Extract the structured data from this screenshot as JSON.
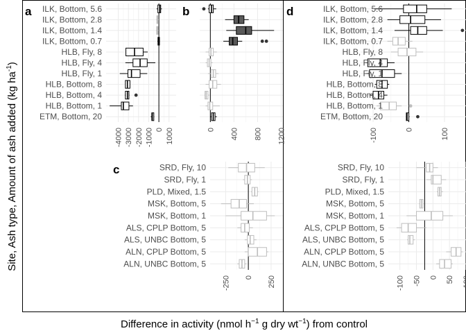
{
  "figure": {
    "ylabel_main": "Site, Ash type, Amount of ash added (kg ha",
    "ylabel_sup": "-1",
    "ylabel_end": ")",
    "xlabel_pre": "Difference in activity (nmol h",
    "xlabel_sup1": "−1",
    "xlabel_mid": " g dry wt",
    "xlabel_sup2": "−1",
    "xlabel_post": ") from control"
  },
  "colors": {
    "dark_fill": "#595959",
    "dark_stroke": "#000000",
    "light_stroke": "#bdbdbd",
    "grid": "#ebebeb",
    "text": "#4d4d4d"
  },
  "chart_data": [
    {
      "panel": "a",
      "type": "box",
      "categories": [
        "ILK, Bottom, 5.6",
        "ILK, Bottom, 2.8",
        "ILK, Bottom, 1.4",
        "ILK, Bottom, 0.7",
        "HLB, Fly, 8",
        "HLB, Fly, 4",
        "HLB, Fly, 1",
        "HLB, Bottom, 8",
        "HLB, Bottom, 4",
        "HLB, Bottom, 1",
        "ETM, Bottom, 20"
      ],
      "xticks": [
        -4000,
        -3000,
        -2000,
        -1000,
        0,
        1000
      ],
      "xlim": [
        -5200,
        1700
      ],
      "refline": 0,
      "boxes": [
        {
          "q1": -100,
          "med": 80,
          "q3": 180,
          "lo": -230,
          "hi": 300,
          "style": "dark"
        },
        {
          "q1": -200,
          "med": -130,
          "q3": -60,
          "lo": -260,
          "hi": 0,
          "style": "light"
        },
        {
          "q1": -220,
          "med": -140,
          "q3": -80,
          "lo": -280,
          "hi": -20,
          "style": "light"
        },
        {
          "q1": -90,
          "med": -20,
          "q3": 60,
          "lo": -140,
          "hi": 100,
          "style": "dark"
        },
        {
          "q1": -3250,
          "med": -2400,
          "q3": -1550,
          "lo": -3250,
          "hi": -1100,
          "style": "dark"
        },
        {
          "q1": -2550,
          "med": -1850,
          "q3": -1150,
          "lo": -3300,
          "hi": -350,
          "style": "dark"
        },
        {
          "q1": -3050,
          "med": -2700,
          "q3": -1850,
          "lo": -3850,
          "hi": -1150,
          "style": "dark"
        },
        {
          "q1": -3300,
          "med": -3100,
          "q3": -2850,
          "lo": -3300,
          "hi": -2850,
          "style": "dark"
        },
        {
          "q1": -3300,
          "med": -3100,
          "q3": -2950,
          "lo": -3350,
          "hi": -2900,
          "style": "dark",
          "outliers": [
            -2250
          ]
        },
        {
          "q1": -3700,
          "med": -3500,
          "q3": -2950,
          "lo": -4850,
          "hi": -2550,
          "style": "dark"
        },
        {
          "q1": -700,
          "med": -650,
          "q3": -500,
          "lo": -800,
          "hi": -450,
          "style": "dark"
        }
      ]
    },
    {
      "panel": "b",
      "type": "box",
      "xticks": [
        0,
        400,
        800,
        1200
      ],
      "xlim": [
        -180,
        1230
      ],
      "refline": 0,
      "boxes": [
        {
          "q1": -20,
          "med": 20,
          "q3": 50,
          "lo": -40,
          "hi": 100,
          "style": "dark",
          "outliers": [
            -110
          ]
        },
        {
          "q1": 400,
          "med": 480,
          "q3": 570,
          "lo": 250,
          "hi": 650,
          "style": "dark"
        },
        {
          "q1": 440,
          "med": 600,
          "q3": 700,
          "lo": 270,
          "hi": 1080,
          "style": "dark"
        },
        {
          "q1": 320,
          "med": 380,
          "q3": 460,
          "lo": 220,
          "hi": 540,
          "style": "dark",
          "outliers": [
            880,
            950
          ]
        },
        {
          "q1": -20,
          "med": 10,
          "q3": 50,
          "lo": -80,
          "hi": 110,
          "style": "light"
        },
        {
          "q1": -50,
          "med": -20,
          "q3": 10,
          "lo": -80,
          "hi": 40,
          "style": "light"
        },
        {
          "q1": 10,
          "med": 50,
          "q3": 90,
          "lo": -40,
          "hi": 140,
          "style": "light"
        },
        {
          "q1": -20,
          "med": 40,
          "q3": 110,
          "lo": -80,
          "hi": 180,
          "style": "light"
        },
        {
          "q1": -90,
          "med": -70,
          "q3": -40,
          "lo": -100,
          "hi": -20,
          "style": "light"
        },
        {
          "q1": -40,
          "med": -10,
          "q3": 40,
          "lo": -80,
          "hi": 160,
          "style": "light"
        },
        {
          "q1": 20,
          "med": 50,
          "q3": 80,
          "lo": 0,
          "hi": 110,
          "style": "dark"
        }
      ]
    },
    {
      "panel": "d",
      "type": "box",
      "categories": [
        "ILK, Bottom, 5.6",
        "ILK, Bottom, 2.8",
        "ILK, Bottom, 1.4",
        "ILK, Bottom, 0.7",
        "HLB, Fly, 8",
        "HLB, Fly, 4",
        "HLB, Fly, 1",
        "HLB, Bottom, 8",
        "HLB, Bottom, 4",
        "HLB, Bottom, 1",
        "ETM, Bottom, 20"
      ],
      "xticks": [
        -100,
        0,
        100
      ],
      "xlim": [
        -135,
        160
      ],
      "refline": 0,
      "boxes": [
        {
          "q1": -15,
          "med": 22,
          "q3": 50,
          "lo": -95,
          "hi": 120,
          "style": "dark"
        },
        {
          "q1": -25,
          "med": 5,
          "q3": 45,
          "lo": -60,
          "hi": 90,
          "style": "dark"
        },
        {
          "q1": 5,
          "med": 25,
          "q3": 50,
          "lo": -40,
          "hi": 95,
          "style": "dark",
          "outliers": [
            150
          ]
        },
        {
          "q1": -45,
          "med": -30,
          "q3": -10,
          "lo": -60,
          "hi": 10,
          "style": "light"
        },
        {
          "q1": -30,
          "med": -5,
          "q3": 20,
          "lo": -50,
          "hi": 40,
          "style": "light"
        },
        {
          "q1": -115,
          "med": -80,
          "q3": -60,
          "lo": -120,
          "hi": -40,
          "style": "dark"
        },
        {
          "q1": -110,
          "med": -75,
          "q3": -40,
          "lo": -120,
          "hi": -20,
          "style": "dark"
        },
        {
          "q1": -90,
          "med": -75,
          "q3": -60,
          "lo": -95,
          "hi": -55,
          "style": "dark"
        },
        {
          "q1": -100,
          "med": -85,
          "q3": -70,
          "lo": -110,
          "hi": -60,
          "style": "dark"
        },
        {
          "q1": -80,
          "med": -55,
          "q3": -35,
          "lo": -90,
          "hi": -20,
          "style": "light",
          "outliers": [
            5
          ]
        },
        {
          "q1": -7,
          "med": -5,
          "q3": 0,
          "lo": -8,
          "hi": 2,
          "style": "dark",
          "outliers": [
            25
          ]
        }
      ]
    },
    {
      "panel": "c",
      "type": "box",
      "categories": [
        "SRD, Fly, 10",
        "SRD, Fly, 1",
        "PLD, Mixed, 1.5",
        "MSK, Bottom, 5",
        "MSK, Bottom, 1",
        "ALS, CPLP Bottom, 5",
        "ALS, UNBC Bottom, 5",
        "ALN, CPLP Bottom, 5",
        "ALN, UNBC Bottom, 5"
      ],
      "xticks": [
        -250,
        0,
        250
      ],
      "xlim": [
        -420,
        380
      ],
      "refline": 0,
      "boxes": [
        {
          "q1": -110,
          "med": -20,
          "q3": 70,
          "lo": -220,
          "hi": 180,
          "style": "light"
        },
        {
          "q1": -40,
          "med": -10,
          "q3": 20,
          "lo": -60,
          "hi": 40,
          "style": "light"
        },
        {
          "q1": 40,
          "med": 70,
          "q3": 100,
          "lo": 30,
          "hi": 110,
          "style": "light"
        },
        {
          "q1": -190,
          "med": -100,
          "q3": -20,
          "lo": -300,
          "hi": 60,
          "style": "light"
        },
        {
          "q1": -80,
          "med": 50,
          "q3": 200,
          "lo": -250,
          "hi": 290,
          "style": "light"
        },
        {
          "q1": -80,
          "med": -40,
          "q3": 10,
          "lo": -120,
          "hi": 50,
          "style": "light"
        },
        {
          "q1": -10,
          "med": 20,
          "q3": 60,
          "lo": -40,
          "hi": 90,
          "style": "light"
        },
        {
          "q1": 0,
          "med": 100,
          "q3": 200,
          "lo": -40,
          "hi": 220,
          "style": "light"
        },
        {
          "q1": -100,
          "med": -70,
          "q3": -40,
          "lo": -120,
          "hi": -20,
          "style": "light"
        }
      ]
    },
    {
      "panel": "",
      "type": "box",
      "categories": [
        "SRD, Fly, 10",
        "SRD, Fly, 1",
        "PLD, Mixed, 1.5",
        "MSK, Bottom, 5",
        "MSK, Bottom, 1",
        "ALS, CPLP Bottom, 5",
        "ALS, UNBC Bottom, 5",
        "ALN, CPLP Bottom, 5",
        "ALN, UNBC Bottom, 5"
      ],
      "xticks": [
        -100,
        -50,
        0,
        50,
        100
      ],
      "xlim": [
        -135,
        100
      ],
      "refline": -25,
      "boxes": [
        {
          "q1": -20,
          "med": -10,
          "q3": 0,
          "lo": -50,
          "hi": 15,
          "style": "light"
        },
        {
          "q1": -5,
          "med": 0,
          "q3": 25,
          "lo": -20,
          "hi": 40,
          "style": "light"
        },
        {
          "q1": 15,
          "med": 20,
          "q3": 25,
          "lo": 12,
          "hi": 30,
          "style": "light"
        },
        {
          "q1": -40,
          "med": -35,
          "q3": -30,
          "lo": -42,
          "hi": -28,
          "style": "light"
        },
        {
          "q1": -50,
          "med": -5,
          "q3": 30,
          "lo": -80,
          "hi": 60,
          "style": "light"
        },
        {
          "q1": -95,
          "med": -75,
          "q3": -50,
          "lo": -110,
          "hi": -20,
          "style": "light"
        },
        {
          "q1": -75,
          "med": -70,
          "q3": -60,
          "lo": -78,
          "hi": -55,
          "style": "light"
        },
        {
          "q1": 55,
          "med": 70,
          "q3": 85,
          "lo": 40,
          "hi": 90,
          "style": "light"
        },
        {
          "q1": 20,
          "med": 35,
          "q3": 55,
          "lo": 10,
          "hi": 60,
          "style": "light"
        }
      ]
    }
  ]
}
